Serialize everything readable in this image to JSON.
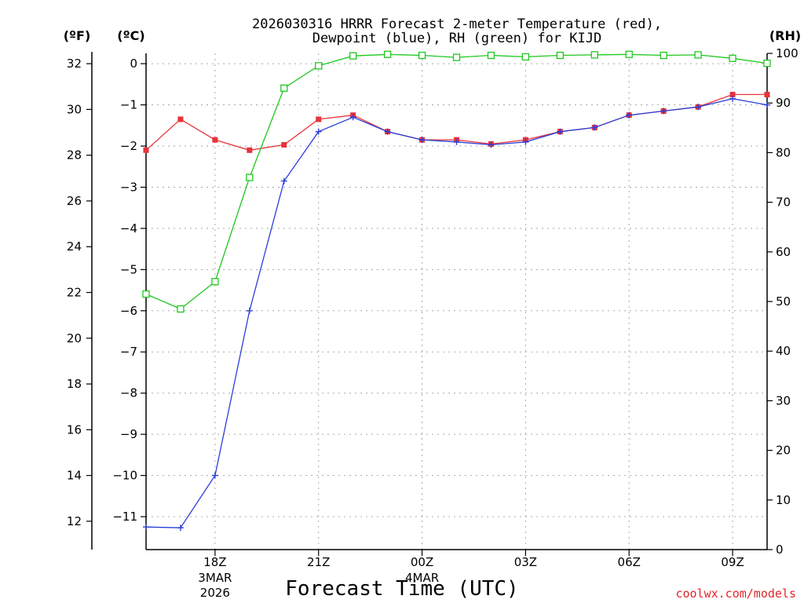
{
  "chart_data": {
    "type": "line",
    "title_line1": "2026030316 HRRR Forecast 2-meter Temperature (red),",
    "title_line2": "Dewpoint (blue), RH (green) for KIJD",
    "xlabel": "Forecast Time (UTC)",
    "credit": "coolwx.com/models",
    "units": {
      "f": "(ºF)",
      "c": "(ºC)",
      "rh": "(RH)"
    },
    "x_hours": [
      16,
      17,
      18,
      19,
      20,
      21,
      22,
      23,
      24,
      25,
      26,
      27,
      28,
      29,
      30,
      31,
      32,
      33,
      34
    ],
    "x_ticks": [
      {
        "hour": 18,
        "label": "18Z",
        "sub1": "3MAR",
        "sub2": "2026"
      },
      {
        "hour": 21,
        "label": "21Z",
        "sub1": "",
        "sub2": ""
      },
      {
        "hour": 24,
        "label": "00Z",
        "sub1": "4MAR",
        "sub2": ""
      },
      {
        "hour": 27,
        "label": "03Z",
        "sub1": "",
        "sub2": ""
      },
      {
        "hour": 30,
        "label": "06Z",
        "sub1": "",
        "sub2": ""
      },
      {
        "hour": 33,
        "label": "09Z",
        "sub1": "",
        "sub2": ""
      }
    ],
    "y_celsius_ticks": [
      "0",
      "−1",
      "−2",
      "−3",
      "−4",
      "−5",
      "−6",
      "−7",
      "−8",
      "−9",
      "−10",
      "−11"
    ],
    "y_celsius_values": [
      0,
      -1,
      -2,
      -3,
      -4,
      -5,
      -6,
      -7,
      -8,
      -9,
      -10,
      -11
    ],
    "y_fahrenheit_ticks": [
      "32",
      "30",
      "28",
      "26",
      "24",
      "22",
      "20",
      "18",
      "16",
      "14",
      "12"
    ],
    "y_fahrenheit_values": [
      32,
      30,
      28,
      26,
      24,
      22,
      20,
      18,
      16,
      14,
      12
    ],
    "y_rh_ticks": [
      "100",
      "90",
      "80",
      "70",
      "60",
      "50",
      "40",
      "30",
      "20",
      "10",
      "0"
    ],
    "y_rh_values": [
      100,
      90,
      80,
      70,
      60,
      50,
      40,
      30,
      20,
      10,
      0
    ],
    "ylim_c": [
      -11.8,
      0.25
    ],
    "ylim_rh": [
      0,
      100
    ],
    "grid": true,
    "series": [
      {
        "name": "Temperature",
        "axis": "c",
        "color": "#e8323a",
        "marker": "filled-square",
        "values": [
          -2.1,
          -1.35,
          -1.85,
          -2.1,
          -1.97,
          -1.35,
          -1.25,
          -1.65,
          -1.85,
          -1.85,
          -1.95,
          -1.85,
          -1.65,
          -1.55,
          -1.25,
          -1.15,
          -1.05,
          -0.75,
          -0.75
        ]
      },
      {
        "name": "Dewpoint",
        "axis": "c",
        "color": "#2a3fd8",
        "marker": "plus",
        "values": [
          -11.25,
          -11.27,
          -10.0,
          -6.0,
          -2.85,
          -1.65,
          -1.3,
          -1.65,
          -1.85,
          -1.9,
          -1.97,
          -1.9,
          -1.65,
          -1.55,
          -1.25,
          -1.15,
          -1.05,
          -0.85,
          -1.0
        ]
      },
      {
        "name": "RH",
        "axis": "rh",
        "color": "#1ec81e",
        "marker": "open-square",
        "values": [
          51.5,
          48.5,
          54.0,
          75.0,
          93.0,
          97.5,
          99.5,
          99.8,
          99.6,
          99.2,
          99.6,
          99.3,
          99.6,
          99.7,
          99.8,
          99.6,
          99.7,
          99.0,
          98.0
        ]
      }
    ]
  }
}
